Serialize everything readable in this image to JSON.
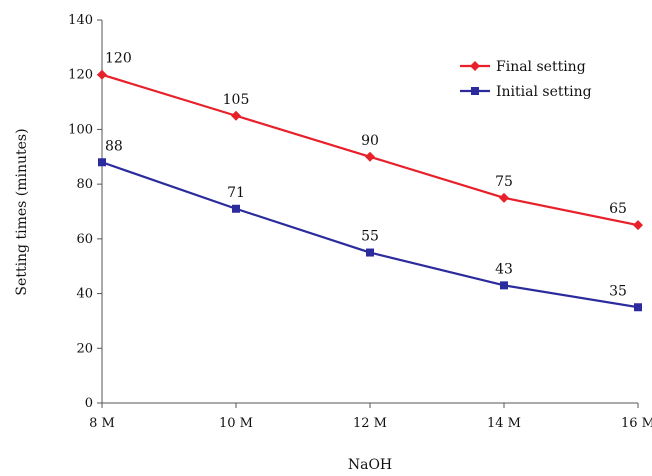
{
  "chart_data": {
    "type": "line",
    "title": "",
    "xlabel": "NaOH",
    "ylabel": "Setting times (minutes)",
    "categories": [
      "8 M",
      "10 M",
      "12 M",
      "14 M",
      "16 M"
    ],
    "ylim": [
      0,
      140
    ],
    "yticks": [
      0,
      20,
      40,
      60,
      80,
      100,
      120,
      140
    ],
    "grid": false,
    "legend_position": "top-right",
    "series": [
      {
        "name": "Final setting",
        "values": [
          120,
          105,
          90,
          75,
          65
        ],
        "color": "#e8202a",
        "marker": "diamond"
      },
      {
        "name": "Initial setting",
        "values": [
          88,
          71,
          55,
          43,
          35
        ],
        "color": "#2b2b9e",
        "marker": "square"
      }
    ]
  }
}
